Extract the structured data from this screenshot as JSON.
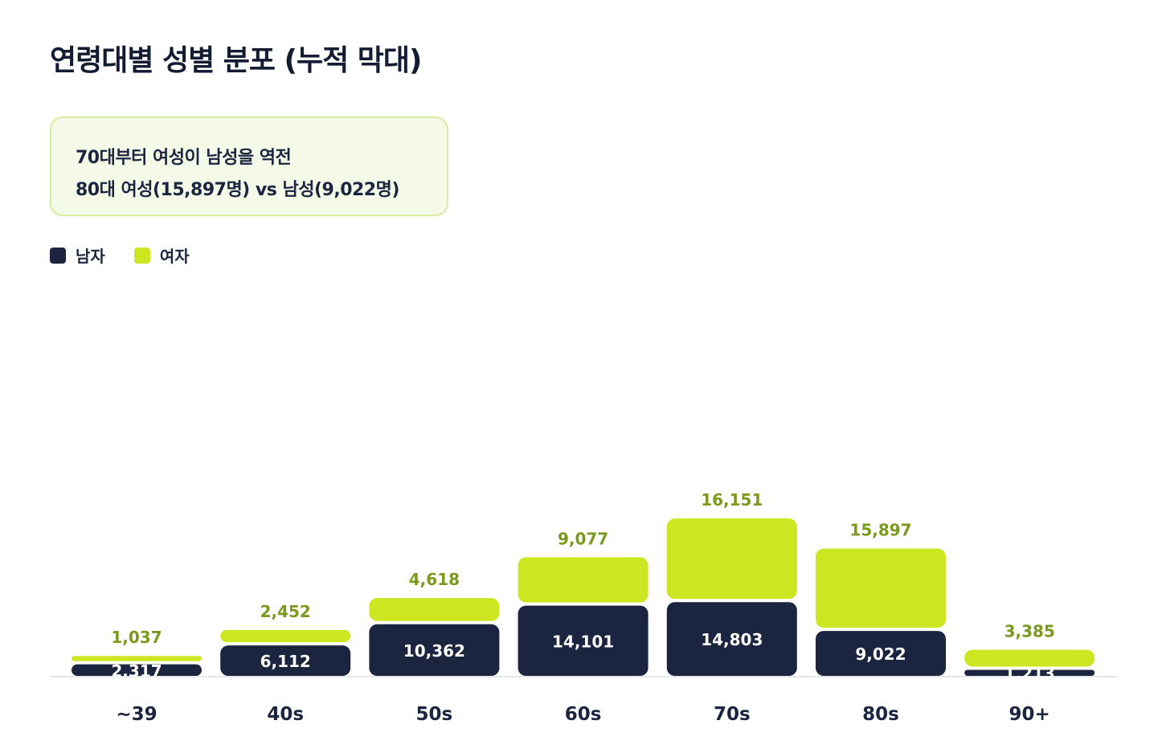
{
  "title": "연령대별 성별 분포 (누적 막대)",
  "callout": {
    "line1": "70대부터 여성이 남성을 역전",
    "line2": "80대 여성(15,897명) vs 남성(9,022명)"
  },
  "legend": [
    {
      "label": "남자",
      "color": "#1b2540"
    },
    {
      "label": "여자",
      "color": "#cde622"
    }
  ],
  "colors": {
    "male": "#1b2540",
    "female": "#cde622",
    "female_label": "#7a9a1c",
    "male_label": "#ffffff",
    "category_label": "#1b2540",
    "baseline": "#e5e7eb"
  },
  "chart_data": {
    "type": "bar",
    "stacked": true,
    "title": "연령대별 성별 분포 (누적 막대)",
    "categories": [
      "~39",
      "40s",
      "50s",
      "60s",
      "70s",
      "80s",
      "90+"
    ],
    "series": [
      {
        "name": "남자",
        "values": [
          2317,
          6112,
          10362,
          14101,
          14803,
          9022,
          1213
        ]
      },
      {
        "name": "여자",
        "values": [
          1037,
          2452,
          4618,
          9077,
          16151,
          15897,
          3385
        ]
      }
    ],
    "value_labels": {
      "male": [
        "2,317",
        "6,112",
        "10,362",
        "14,101",
        "14,803",
        "9,022",
        "1,213"
      ],
      "female": [
        "1,037",
        "2,452",
        "4,618",
        "9,077",
        "16,151",
        "15,897",
        "3,385"
      ]
    },
    "grid": false,
    "legend_position": "top-left"
  }
}
